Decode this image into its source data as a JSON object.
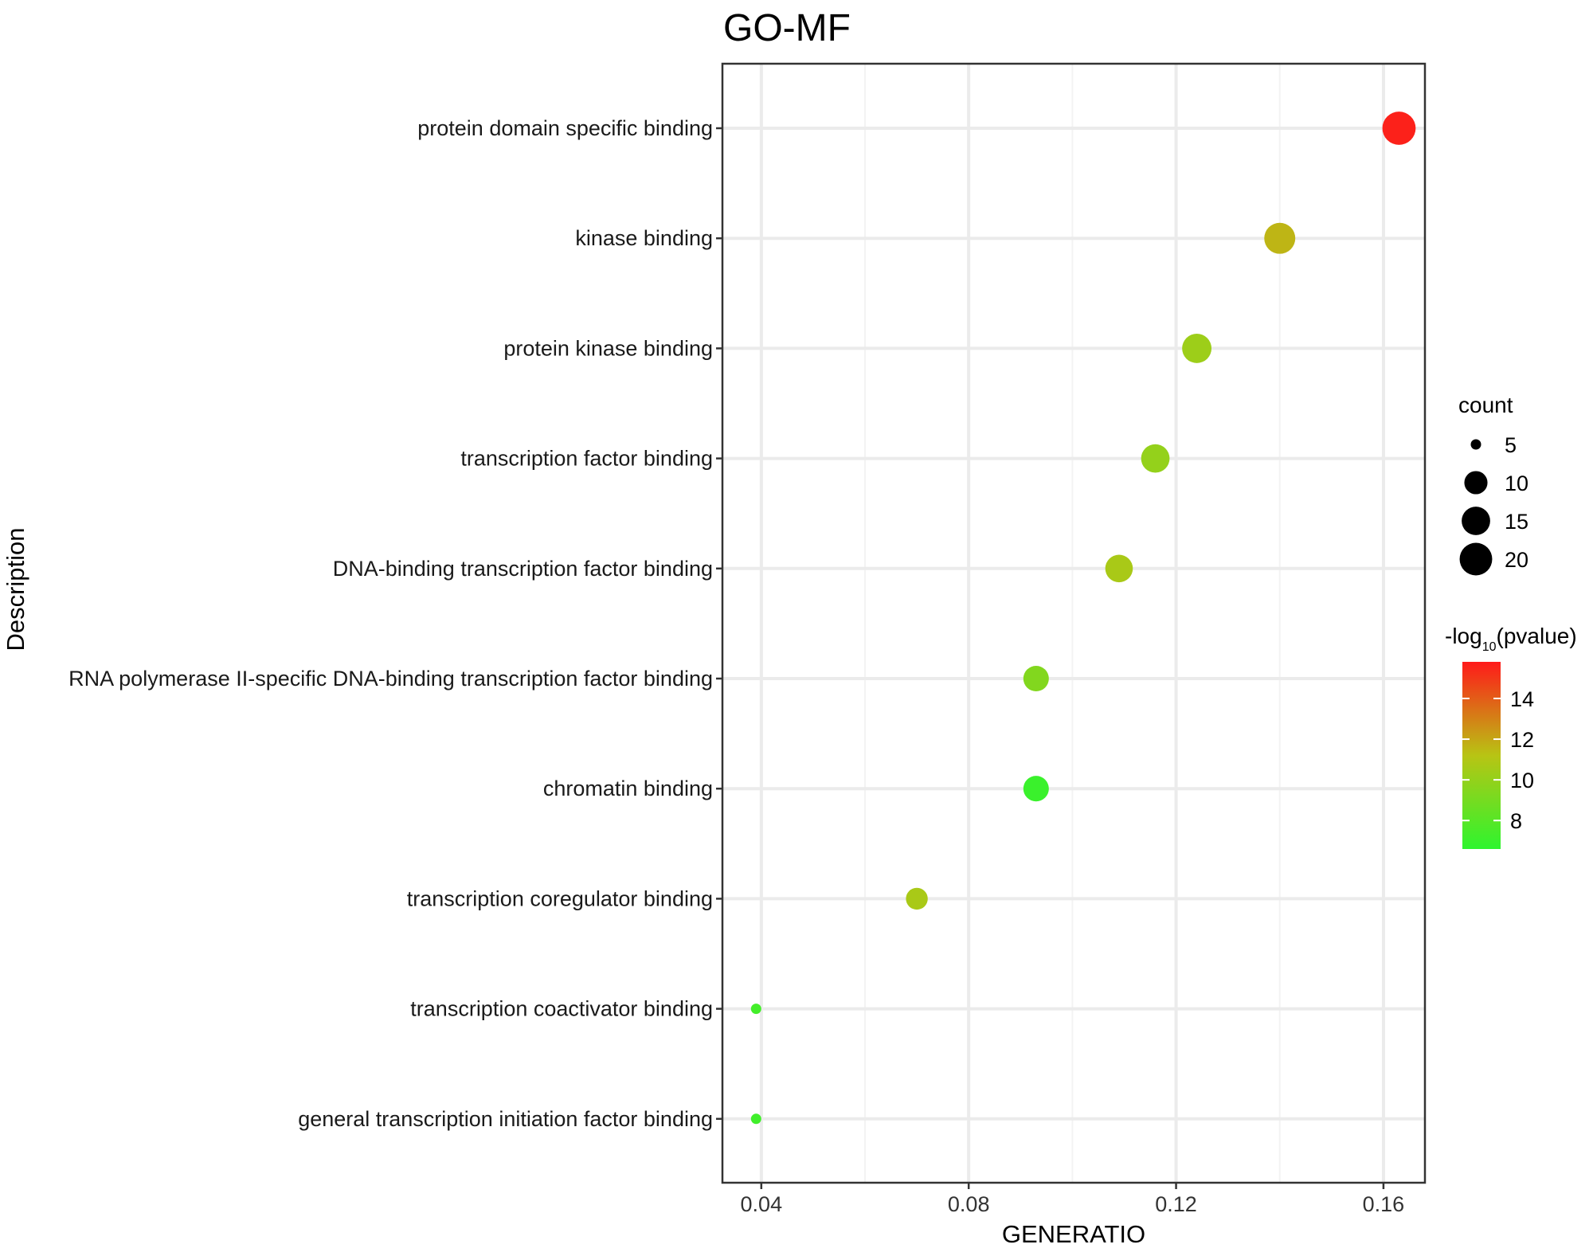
{
  "chart_data": {
    "type": "scatter",
    "title": "GO-MF",
    "xlabel": "GENERATIO",
    "ylabel": "Description",
    "xlim": [
      0.0325,
      0.168
    ],
    "xticks": [
      0.04,
      0.08,
      0.12,
      0.16
    ],
    "xtick_labels": [
      "0.04",
      "0.08",
      "0.12",
      "0.16"
    ],
    "grid": true,
    "categories": [
      "protein domain specific binding",
      "kinase binding",
      "protein kinase binding",
      "transcription factor binding",
      "DNA-binding transcription factor binding",
      "RNA polymerase II-specific DNA-binding transcription factor binding",
      "chromatin binding",
      "transcription coregulator binding",
      "transcription coactivator binding",
      "general transcription initiation factor binding"
    ],
    "points": [
      {
        "category": "protein domain specific binding",
        "generatio": 0.163,
        "count": 21,
        "neg_log10_pvalue": 15.6
      },
      {
        "category": "kinase binding",
        "generatio": 0.14,
        "count": 18,
        "neg_log10_pvalue": 11.6
      },
      {
        "category": "protein kinase binding",
        "generatio": 0.124,
        "count": 16,
        "neg_log10_pvalue": 10.3
      },
      {
        "category": "transcription factor binding",
        "generatio": 0.116,
        "count": 15,
        "neg_log10_pvalue": 10.0
      },
      {
        "category": "DNA-binding transcription factor binding",
        "generatio": 0.109,
        "count": 14,
        "neg_log10_pvalue": 10.7
      },
      {
        "category": "RNA polymerase II-specific DNA-binding transcription factor binding",
        "generatio": 0.093,
        "count": 12,
        "neg_log10_pvalue": 9.4
      },
      {
        "category": "chromatin binding",
        "generatio": 0.093,
        "count": 12,
        "neg_log10_pvalue": 7.0
      },
      {
        "category": "transcription coregulator binding",
        "generatio": 0.07,
        "count": 9,
        "neg_log10_pvalue": 10.7
      },
      {
        "category": "transcription coactivator binding",
        "generatio": 0.039,
        "count": 5,
        "neg_log10_pvalue": 7.3
      },
      {
        "category": "general transcription initiation factor binding",
        "generatio": 0.039,
        "count": 5,
        "neg_log10_pvalue": 7.2
      }
    ],
    "size_legend": {
      "title": "count",
      "breaks": [
        5,
        10,
        15,
        20
      ],
      "labels": [
        "5",
        "10",
        "15",
        "20"
      ]
    },
    "color_legend": {
      "title_prefix": "-log",
      "title_subscript": "10",
      "title_suffix": "(pvalue)",
      "range": [
        6.6,
        15.8
      ],
      "breaks": [
        8,
        10,
        12,
        14
      ],
      "labels": [
        "8",
        "10",
        "12",
        "14"
      ],
      "low_color": "#2ef52e",
      "mid_color": "#b8c414",
      "high_color": "#ff1a1a"
    }
  }
}
